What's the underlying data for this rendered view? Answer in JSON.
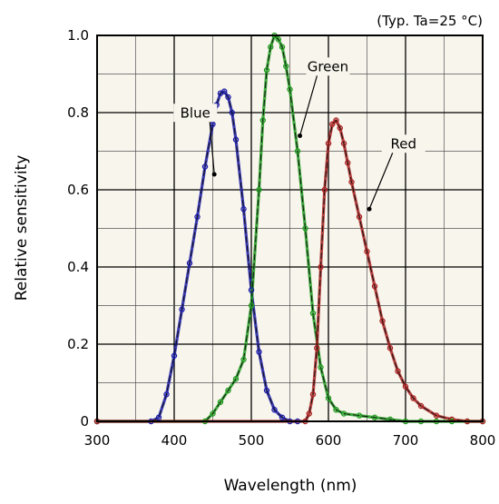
{
  "chart_data": {
    "type": "line",
    "title": "",
    "condition_note": "(Typ. Ta=25 °C)",
    "xlabel": "Wavelength (nm)",
    "ylabel": "Relative sensitivity",
    "xlim": [
      300,
      800
    ],
    "ylim": [
      0,
      1.0
    ],
    "x_ticks": [
      300,
      400,
      500,
      600,
      700,
      800
    ],
    "y_ticks": [
      0,
      0.2,
      0.4,
      0.6,
      0.8,
      1.0
    ],
    "y_tick_labels": [
      "0",
      "0.2",
      "0.4",
      "0.6",
      "0.8",
      "1.0"
    ],
    "grid": true,
    "plot_background": "#f8f5ec",
    "series": [
      {
        "name": "Blue",
        "color": "#1a1aa8",
        "x": [
          300,
          370,
          380,
          390,
          400,
          410,
          420,
          430,
          440,
          450,
          455,
          460,
          465,
          470,
          475,
          480,
          490,
          500,
          510,
          520,
          530,
          540,
          550,
          560
        ],
        "y": [
          0,
          0,
          0.01,
          0.07,
          0.17,
          0.29,
          0.41,
          0.53,
          0.66,
          0.77,
          0.82,
          0.85,
          0.855,
          0.84,
          0.8,
          0.73,
          0.55,
          0.34,
          0.18,
          0.08,
          0.03,
          0.01,
          0,
          0
        ]
      },
      {
        "name": "Green",
        "color": "#1f9a1f",
        "x": [
          300,
          440,
          450,
          460,
          470,
          480,
          490,
          500,
          510,
          515,
          520,
          525,
          530,
          535,
          540,
          545,
          550,
          560,
          570,
          580,
          590,
          600,
          610,
          620,
          640,
          660,
          680,
          700,
          720,
          740,
          760,
          780,
          800
        ],
        "y": [
          0,
          0,
          0.02,
          0.05,
          0.08,
          0.11,
          0.16,
          0.3,
          0.6,
          0.78,
          0.91,
          0.97,
          1.0,
          0.99,
          0.97,
          0.92,
          0.86,
          0.7,
          0.5,
          0.28,
          0.14,
          0.06,
          0.03,
          0.02,
          0.015,
          0.01,
          0.005,
          0,
          0,
          0,
          0,
          0,
          0
        ]
      },
      {
        "name": "Red",
        "color": "#a82020",
        "x": [
          300,
          570,
          575,
          580,
          585,
          590,
          595,
          600,
          605,
          610,
          615,
          620,
          625,
          630,
          640,
          650,
          660,
          670,
          680,
          690,
          700,
          710,
          720,
          740,
          760,
          780,
          800
        ],
        "y": [
          0,
          0,
          0.02,
          0.07,
          0.19,
          0.4,
          0.6,
          0.72,
          0.77,
          0.78,
          0.76,
          0.72,
          0.67,
          0.62,
          0.53,
          0.44,
          0.35,
          0.26,
          0.19,
          0.13,
          0.09,
          0.06,
          0.04,
          0.015,
          0.005,
          0,
          0
        ]
      }
    ],
    "annotations": [
      {
        "text": "Blue",
        "series": "Blue",
        "label_at": [
          425,
          0.79
        ],
        "points_to": [
          452,
          0.64
        ]
      },
      {
        "text": "Green",
        "series": "Green",
        "label_at": [
          597,
          0.91
        ],
        "points_to": [
          563,
          0.74
        ]
      },
      {
        "text": "Red",
        "series": "Red",
        "label_at": [
          695,
          0.71
        ],
        "points_to": [
          653,
          0.55
        ]
      }
    ]
  }
}
